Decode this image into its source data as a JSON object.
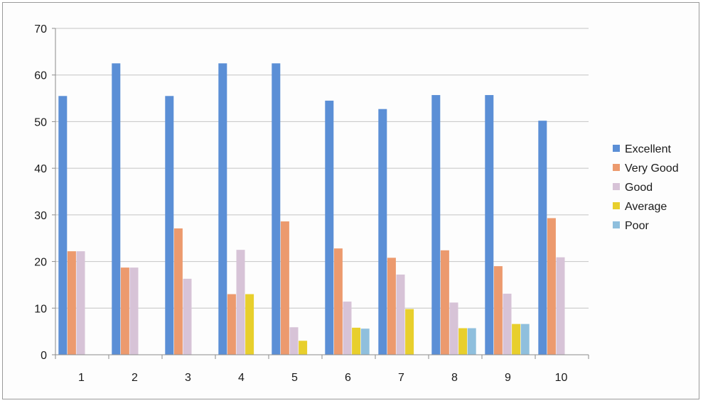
{
  "chart_data": {
    "type": "bar",
    "title": "",
    "xlabel": "",
    "ylabel": "",
    "categories": [
      "1",
      "2",
      "3",
      "4",
      "5",
      "6",
      "7",
      "8",
      "9",
      "10"
    ],
    "ylim": [
      0,
      70
    ],
    "yticks": [
      0,
      10,
      20,
      30,
      40,
      50,
      60,
      70
    ],
    "grid": "horizontal",
    "legend_position": "right",
    "series": [
      {
        "name": "Excellent",
        "color": "#5b8fd6",
        "values": [
          55.5,
          62.5,
          55.5,
          62.5,
          62.5,
          54.5,
          52.7,
          55.7,
          55.7,
          50.2
        ]
      },
      {
        "name": "Very Good",
        "color": "#ec9a6e",
        "values": [
          22.2,
          18.7,
          27.1,
          13.0,
          28.6,
          22.8,
          20.8,
          22.4,
          19.0,
          29.3
        ]
      },
      {
        "name": "Good",
        "color": "#d7c3d7",
        "values": [
          22.2,
          18.7,
          16.3,
          22.5,
          5.9,
          11.4,
          17.2,
          11.2,
          13.1,
          20.9
        ]
      },
      {
        "name": "Average",
        "color": "#e8cf2c",
        "values": [
          0,
          0,
          0,
          13.0,
          3.0,
          5.8,
          9.8,
          5.7,
          6.6,
          0
        ]
      },
      {
        "name": "Poor",
        "color": "#8fbfdd",
        "values": [
          0,
          0,
          0,
          0,
          0,
          5.6,
          0,
          5.7,
          6.6,
          0
        ]
      }
    ]
  }
}
